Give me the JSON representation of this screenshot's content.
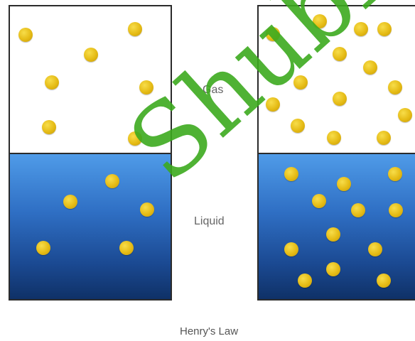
{
  "labels": {
    "gas": "Gas",
    "liquid": "Liquid",
    "caption": "Henry's Law"
  },
  "watermark": {
    "text": "Shubhar R"
  },
  "colors": {
    "molecule": "#e5bb15",
    "liquid_top": "#4f9be8",
    "liquid_bottom": "#0f3167",
    "border": "#2b2b2b",
    "watermark": "#3caa1e"
  }
}
